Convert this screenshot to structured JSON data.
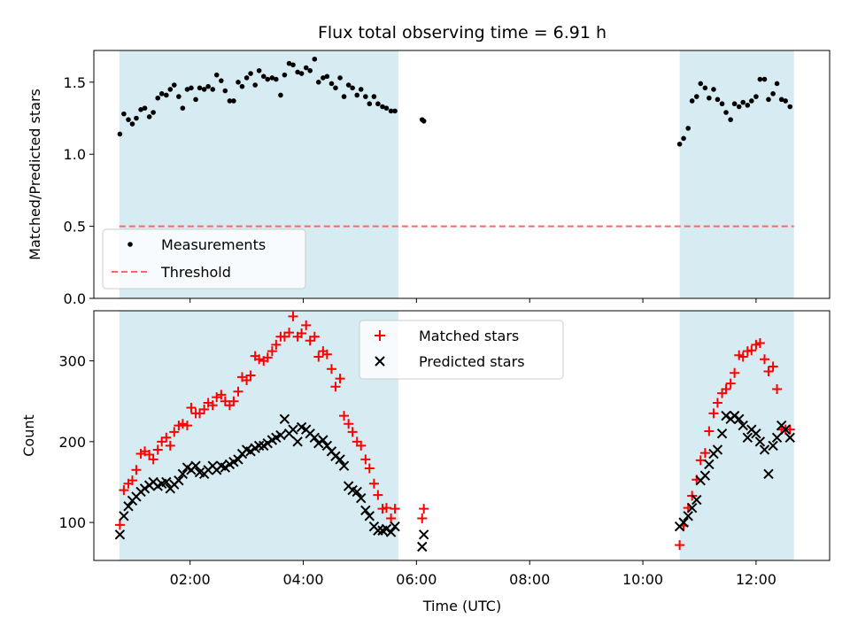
{
  "chart_data": {
    "title": "Flux total observing time = 6.91 h",
    "type": "scatter",
    "xlabel": "Time (UTC)",
    "x_unit": "hours UTC",
    "xlim": [
      0.3,
      13.3
    ],
    "xticks": [
      {
        "v": 2,
        "label": "02:00"
      },
      {
        "v": 4,
        "label": "04:00"
      },
      {
        "v": 6,
        "label": "06:00"
      },
      {
        "v": 8,
        "label": "08:00"
      },
      {
        "v": 10,
        "label": "10:00"
      },
      {
        "v": 12,
        "label": "12:00"
      }
    ],
    "shaded_intervals": [
      [
        0.75,
        5.68
      ],
      [
        10.65,
        12.67
      ]
    ],
    "colors": {
      "shade": "#add8e6",
      "measurement": "#000000",
      "threshold": "#ff6666",
      "matched": "#ff0000",
      "predicted": "#000000"
    },
    "top_panel": {
      "ylabel": "Matched/Predicted stars",
      "ylim": [
        0,
        1.72
      ],
      "yticks": [
        {
          "v": 0,
          "label": "0.0"
        },
        {
          "v": 0.5,
          "label": "0.5"
        },
        {
          "v": 1.0,
          "label": "1.0"
        },
        {
          "v": 1.5,
          "label": "1.5"
        }
      ],
      "threshold": 0.5,
      "legend": {
        "placement": "lower-left",
        "entries": [
          "Measurements",
          "Threshold"
        ]
      },
      "measurements": {
        "x": [
          0.76,
          0.83,
          0.91,
          0.98,
          1.05,
          1.13,
          1.2,
          1.28,
          1.35,
          1.43,
          1.5,
          1.58,
          1.65,
          1.72,
          1.8,
          1.87,
          1.95,
          2.02,
          2.1,
          2.17,
          2.25,
          2.32,
          2.4,
          2.47,
          2.55,
          2.62,
          2.7,
          2.77,
          2.85,
          2.92,
          3.0,
          3.07,
          3.15,
          3.22,
          3.3,
          3.37,
          3.45,
          3.52,
          3.6,
          3.67,
          3.75,
          3.82,
          3.9,
          3.97,
          4.05,
          4.12,
          4.2,
          4.27,
          4.35,
          4.42,
          4.5,
          4.57,
          4.65,
          4.72,
          4.8,
          4.87,
          4.95,
          5.02,
          5.1,
          5.17,
          5.25,
          5.32,
          5.4,
          5.47,
          5.55,
          5.62,
          6.1,
          6.13,
          10.65,
          10.72,
          10.8,
          10.87,
          10.95,
          11.02,
          11.1,
          11.17,
          11.25,
          11.32,
          11.4,
          11.47,
          11.55,
          11.62,
          11.7,
          11.77,
          11.85,
          11.92,
          12.0,
          12.07,
          12.15,
          12.22,
          12.3,
          12.37,
          12.45,
          12.52,
          12.6
        ],
        "y": [
          1.14,
          1.28,
          1.24,
          1.21,
          1.25,
          1.31,
          1.32,
          1.26,
          1.29,
          1.39,
          1.42,
          1.41,
          1.45,
          1.48,
          1.4,
          1.32,
          1.45,
          1.46,
          1.38,
          1.46,
          1.45,
          1.47,
          1.45,
          1.55,
          1.51,
          1.44,
          1.37,
          1.37,
          1.5,
          1.47,
          1.53,
          1.56,
          1.48,
          1.58,
          1.54,
          1.52,
          1.53,
          1.52,
          1.41,
          1.55,
          1.63,
          1.62,
          1.57,
          1.56,
          1.6,
          1.58,
          1.66,
          1.5,
          1.53,
          1.54,
          1.49,
          1.46,
          1.53,
          1.4,
          1.48,
          1.46,
          1.41,
          1.45,
          1.4,
          1.35,
          1.4,
          1.35,
          1.33,
          1.32,
          1.3,
          1.3,
          1.24,
          1.23,
          1.07,
          1.11,
          1.18,
          1.37,
          1.4,
          1.49,
          1.46,
          1.39,
          1.45,
          1.38,
          1.35,
          1.29,
          1.24,
          1.35,
          1.33,
          1.36,
          1.34,
          1.37,
          1.4,
          1.52,
          1.52,
          1.38,
          1.42,
          1.49,
          1.38,
          1.37,
          1.33
        ]
      }
    },
    "bottom_panel": {
      "ylabel": "Count",
      "ylim": [
        53,
        362
      ],
      "yticks": [
        {
          "v": 100,
          "label": "100"
        },
        {
          "v": 200,
          "label": "200"
        },
        {
          "v": 300,
          "label": "300"
        }
      ],
      "legend": {
        "placement": "upper-center",
        "entries": [
          "Matched stars",
          "Predicted stars"
        ]
      },
      "matched": {
        "x": [
          0.76,
          0.83,
          0.91,
          0.98,
          1.05,
          1.13,
          1.2,
          1.28,
          1.35,
          1.43,
          1.5,
          1.58,
          1.65,
          1.72,
          1.8,
          1.87,
          1.95,
          2.02,
          2.1,
          2.17,
          2.25,
          2.32,
          2.4,
          2.47,
          2.55,
          2.62,
          2.7,
          2.77,
          2.85,
          2.92,
          3.0,
          3.07,
          3.15,
          3.22,
          3.3,
          3.37,
          3.45,
          3.52,
          3.6,
          3.67,
          3.75,
          3.82,
          3.9,
          3.97,
          4.05,
          4.12,
          4.2,
          4.27,
          4.35,
          4.42,
          4.5,
          4.57,
          4.65,
          4.72,
          4.8,
          4.87,
          4.95,
          5.02,
          5.1,
          5.17,
          5.25,
          5.32,
          5.4,
          5.47,
          5.55,
          5.62,
          6.1,
          6.13,
          10.65,
          10.72,
          10.8,
          10.87,
          10.95,
          11.02,
          11.1,
          11.17,
          11.25,
          11.32,
          11.4,
          11.47,
          11.55,
          11.62,
          11.7,
          11.77,
          11.85,
          11.92,
          12.0,
          12.07,
          12.15,
          12.22,
          12.3,
          12.37,
          12.45,
          12.52,
          12.6
        ],
        "y": [
          97,
          140,
          148,
          152,
          165,
          185,
          188,
          184,
          178,
          190,
          200,
          205,
          195,
          212,
          220,
          222,
          220,
          242,
          235,
          235,
          240,
          248,
          245,
          255,
          258,
          250,
          245,
          250,
          262,
          280,
          276,
          282,
          306,
          302,
          300,
          304,
          312,
          320,
          330,
          330,
          335,
          355,
          330,
          334,
          344,
          325,
          330,
          305,
          312,
          308,
          290,
          268,
          278,
          232,
          222,
          212,
          200,
          195,
          178,
          167,
          148,
          134,
          117,
          118,
          105,
          117,
          105,
          117,
          72,
          96,
          118,
          133,
          153,
          177,
          186,
          213,
          235,
          248,
          260,
          265,
          272,
          285,
          307,
          305,
          312,
          313,
          320,
          322,
          302,
          287,
          293,
          265,
          215,
          215,
          215
        ]
      },
      "predicted": {
        "x": [
          0.76,
          0.83,
          0.91,
          0.98,
          1.05,
          1.13,
          1.2,
          1.28,
          1.35,
          1.43,
          1.5,
          1.58,
          1.65,
          1.72,
          1.8,
          1.87,
          1.95,
          2.02,
          2.1,
          2.17,
          2.25,
          2.32,
          2.4,
          2.47,
          2.55,
          2.62,
          2.7,
          2.77,
          2.85,
          2.92,
          3.0,
          3.07,
          3.15,
          3.22,
          3.3,
          3.37,
          3.45,
          3.52,
          3.6,
          3.67,
          3.75,
          3.82,
          3.9,
          3.97,
          4.05,
          4.12,
          4.2,
          4.27,
          4.35,
          4.42,
          4.5,
          4.57,
          4.65,
          4.72,
          4.8,
          4.87,
          4.95,
          5.02,
          5.1,
          5.17,
          5.25,
          5.32,
          5.4,
          5.47,
          5.55,
          5.62,
          6.1,
          6.13,
          10.65,
          10.72,
          10.8,
          10.87,
          10.95,
          11.02,
          11.1,
          11.17,
          11.25,
          11.32,
          11.4,
          11.47,
          11.55,
          11.62,
          11.7,
          11.77,
          11.85,
          11.92,
          12.0,
          12.07,
          12.15,
          12.22,
          12.3,
          12.37,
          12.45,
          12.52,
          12.6
        ],
        "y": [
          85,
          108,
          120,
          127,
          132,
          138,
          142,
          146,
          150,
          145,
          148,
          150,
          142,
          147,
          152,
          160,
          168,
          165,
          170,
          162,
          160,
          165,
          170,
          165,
          170,
          168,
          172,
          175,
          178,
          185,
          190,
          188,
          192,
          195,
          195,
          198,
          202,
          205,
          208,
          228,
          210,
          215,
          200,
          218,
          215,
          210,
          205,
          198,
          202,
          195,
          188,
          182,
          178,
          170,
          145,
          140,
          138,
          130,
          115,
          108,
          95,
          90,
          90,
          92,
          88,
          95,
          70,
          85,
          95,
          100,
          108,
          118,
          128,
          152,
          158,
          172,
          185,
          190,
          210,
          232,
          228,
          232,
          228,
          220,
          205,
          215,
          210,
          200,
          190,
          160,
          195,
          205,
          220,
          215,
          205
        ]
      }
    }
  }
}
